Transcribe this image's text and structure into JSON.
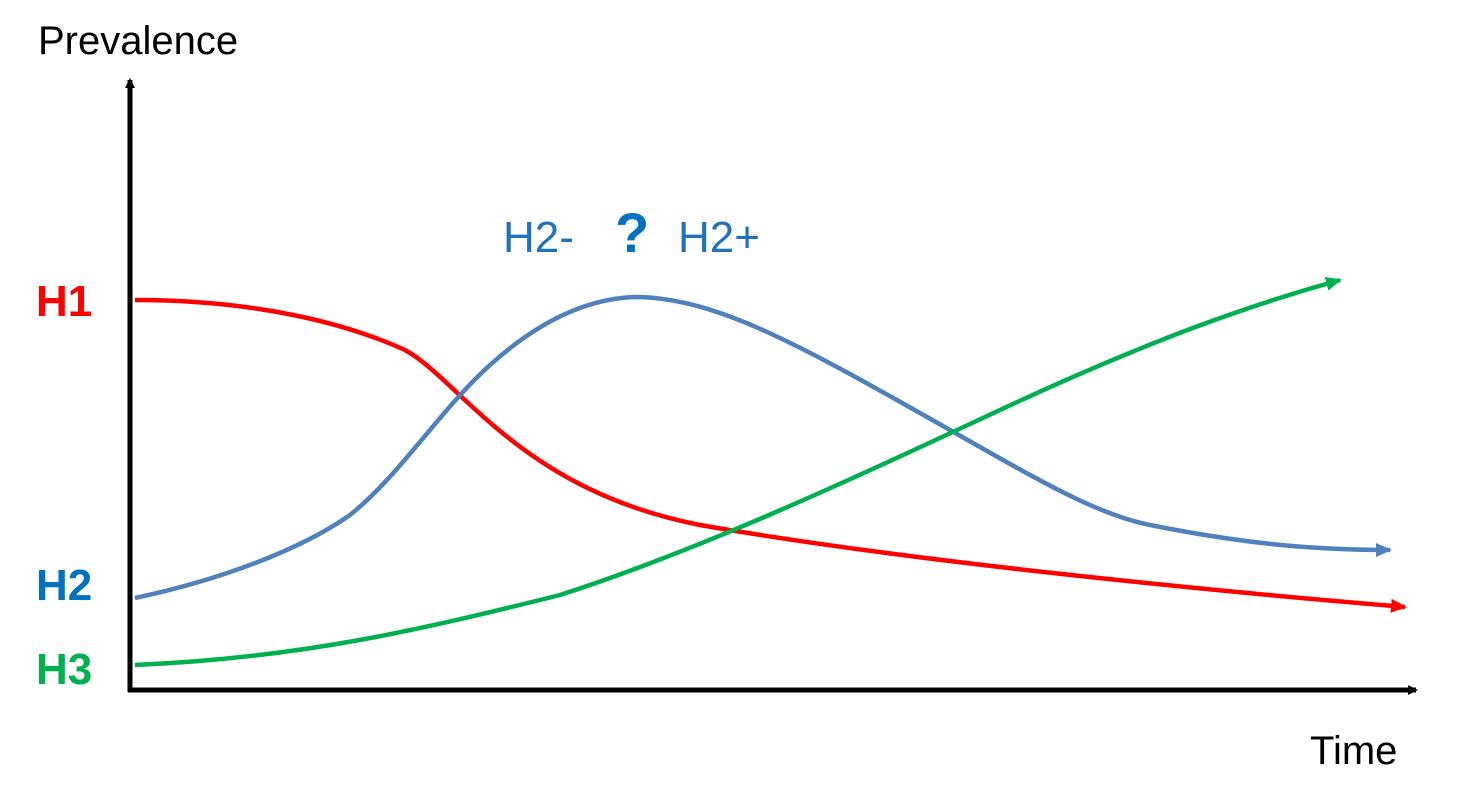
{
  "axes": {
    "y_label": "Prevalence",
    "x_label": "Time"
  },
  "curves": [
    {
      "label": "H1"
    },
    {
      "label": "H2"
    },
    {
      "label": "H3"
    }
  ],
  "annotation": {
    "left": "H2-",
    "mark": "?",
    "right": "H2+"
  }
}
